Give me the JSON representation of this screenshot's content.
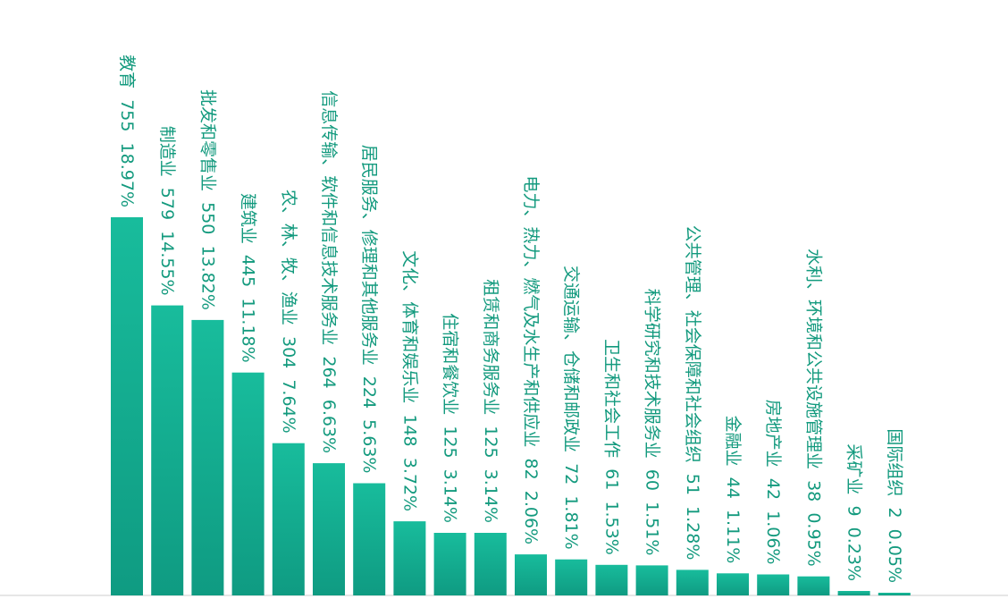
{
  "chart_data": {
    "type": "bar",
    "title": "",
    "xlabel": "",
    "ylabel": "",
    "ylim": [
      0,
      755
    ],
    "grid": false,
    "legend": "none",
    "colors": {
      "bar_top": "#18bc9c",
      "bar_bottom": "#0f9b82",
      "label": "#139a7e",
      "baseline": "#e6e6e6"
    },
    "categories": [
      "教育",
      "制造业",
      "批发和零售业",
      "建筑业",
      "农、林、牧、渔业",
      "信息传输、软件和信息技术服务业",
      "居民服务、修理和其他服务业",
      "文化、体育和娱乐业",
      "住宿和餐饮业",
      "租赁和商务服务业",
      "电力、热力、燃气及水生产和供应业",
      "交通运输、仓储和邮政业",
      "卫生和社会工作",
      "科学研究和技术服务业",
      "公共管理、社会保障和社会组织",
      "金融业",
      "房地产业",
      "水利、环境和公共设施管理业",
      "采矿业",
      "国际组织"
    ],
    "values": [
      755,
      579,
      550,
      445,
      304,
      264,
      224,
      148,
      125,
      125,
      82,
      72,
      61,
      60,
      51,
      44,
      42,
      38,
      9,
      2
    ],
    "percents": [
      "18.97%",
      "14.55%",
      "13.82%",
      "11.18%",
      "7.64%",
      "6.63%",
      "5.63%",
      "3.72%",
      "3.14%",
      "3.14%",
      "2.06%",
      "1.81%",
      "1.53%",
      "1.51%",
      "1.28%",
      "1.11%",
      "1.06%",
      "0.95%",
      "0.23%",
      "0.05%"
    ]
  }
}
